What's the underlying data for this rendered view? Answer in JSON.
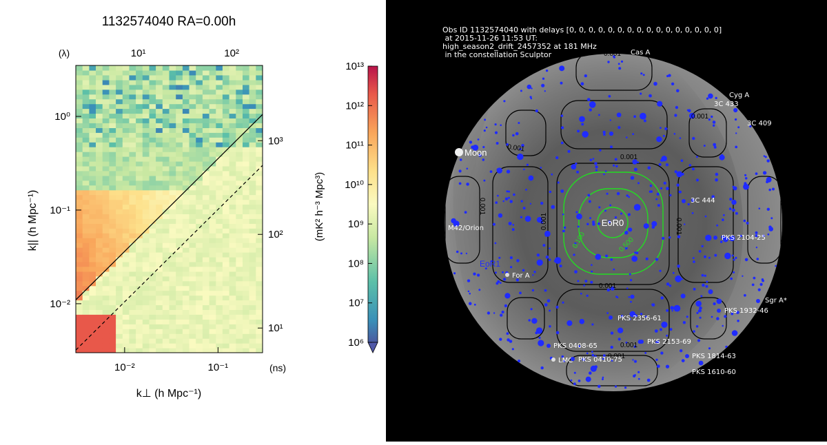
{
  "ps_panel": {
    "title": "1132574040 RA=0.00h",
    "xlabel": "k⊥ (h Mpc⁻¹)",
    "ylabel": "k|| (h Mpc⁻¹)",
    "top_axis_label": "(λ)",
    "right_axis_label": "(ns)",
    "colorbar_label": "(mK² h⁻³ Mpc³)"
  },
  "chart_data": [
    {
      "type": "heatmap",
      "title": "1132574040 RA=0.00h",
      "xlabel": "k⊥ (h Mpc⁻¹)",
      "ylabel": "k|| (h Mpc⁻¹)",
      "x_scale": "log",
      "y_scale": "log",
      "xlim": [
        0.003,
        0.3
      ],
      "ylim": [
        0.003,
        3.5
      ],
      "x_ticks": [
        {
          "value": 0.01,
          "label": "10⁻²"
        },
        {
          "value": 0.1,
          "label": "10⁻¹"
        }
      ],
      "y_ticks": [
        {
          "value": 0.01,
          "label": "10⁻²"
        },
        {
          "value": 0.1,
          "label": "10⁻¹"
        },
        {
          "value": 1,
          "label": "10⁰"
        }
      ],
      "top_axis": {
        "label": "(λ)",
        "ticks": [
          {
            "k_perp": 0.014,
            "label": "10¹"
          },
          {
            "k_perp": 0.14,
            "label": "10²"
          }
        ]
      },
      "right_axis": {
        "label": "(ns)",
        "ticks": [
          {
            "k_par": 0.0055,
            "label": "10¹"
          },
          {
            "k_par": 0.055,
            "label": "10²"
          },
          {
            "k_par": 0.55,
            "label": "10³"
          }
        ]
      },
      "lines": [
        {
          "style": "solid",
          "points": [
            [
              0.003,
              0.011
            ],
            [
              0.3,
              1.05
            ]
          ]
        },
        {
          "style": "dashed",
          "points": [
            [
              0.003,
              0.0032
            ],
            [
              0.3,
              0.3
            ]
          ]
        }
      ],
      "colorbar": {
        "label": "(mK² h⁻³ Mpc³)",
        "scale": "log",
        "range": [
          1000000,
          10000000000000
        ],
        "ticks": [
          "10⁶",
          "10⁷",
          "10⁸",
          "10⁹",
          "10¹⁰",
          "10¹¹",
          "10¹²",
          "10¹³"
        ]
      },
      "grid": false
    },
    {
      "type": "sky_map",
      "header": [
        "Obs ID 1132574040 with delays [0, 0, 0, 0, 0, 0, 0, 0, 0, 0, 0, 0, 0, 0, 0, 0]",
        " at 2015-11-26 11:53 UT:",
        "high_season2_drift_2457352 at 181 MHz",
        " in the constellation Sculptor"
      ],
      "field_label": "EoR0",
      "field_label_2": "EoR1",
      "moon_label": "Moon",
      "sources": [
        {
          "name": "Cas A"
        },
        {
          "name": "Cyg A"
        },
        {
          "name": "3C 433"
        },
        {
          "name": "3C 409"
        },
        {
          "name": "3C 444"
        },
        {
          "name": "M42/Orion"
        },
        {
          "name": "PKS 2104-25"
        },
        {
          "name": "For A"
        },
        {
          "name": "Sgr A*"
        },
        {
          "name": "PKS 1932-46"
        },
        {
          "name": "PKS 2356-61"
        },
        {
          "name": "PKS 2153-69"
        },
        {
          "name": "PKS 0408-65"
        },
        {
          "name": "LMC"
        },
        {
          "name": "PKS 0410-75"
        },
        {
          "name": "PKS 1814-63"
        },
        {
          "name": "PKS 1610-60"
        }
      ],
      "contour_labels": {
        "outer_a": "0.001",
        "outer_b": "0.001",
        "outer_c": "0.001",
        "outer_d": "0.001",
        "outer_e": "0.001",
        "outer_f": "0.001",
        "outer_g": "0.001",
        "outer_h": "0.001",
        "outer_i": "0.001",
        "outer_j": "0.001",
        "green_outer": "0.100",
        "green_inner": "0.500"
      },
      "colors": {
        "sources": "#1f2bff",
        "green_contour": "#22dd22",
        "black_contour": "#000000"
      }
    }
  ]
}
